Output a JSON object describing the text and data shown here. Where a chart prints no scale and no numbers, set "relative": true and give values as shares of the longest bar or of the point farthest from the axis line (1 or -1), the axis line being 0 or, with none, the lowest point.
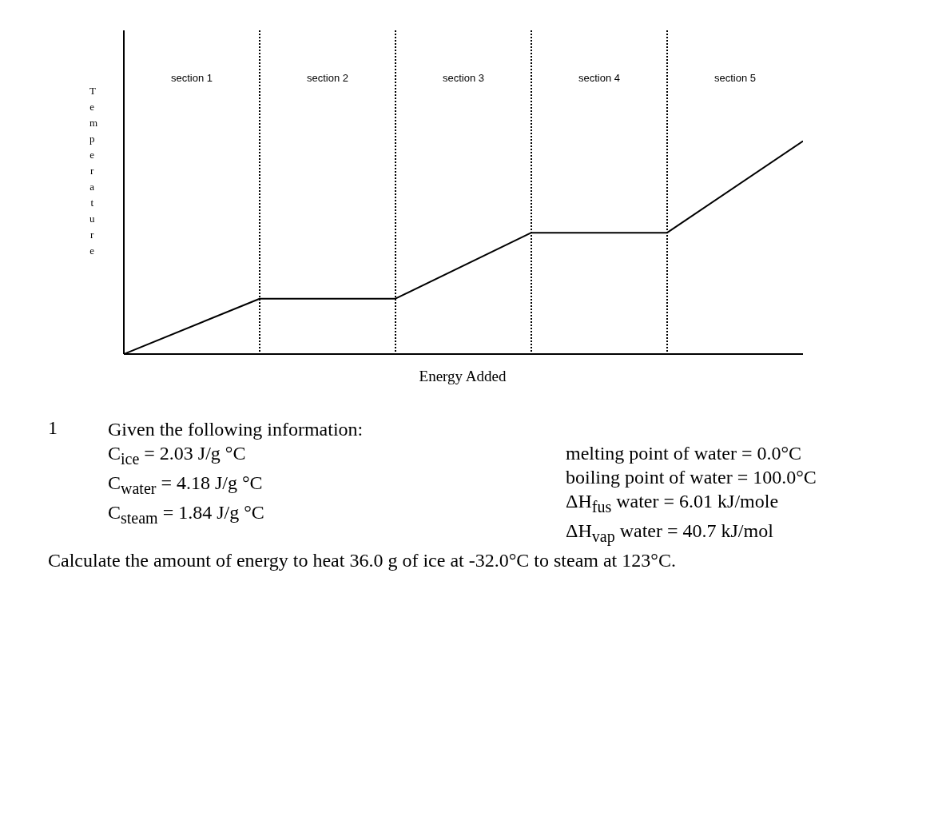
{
  "chart_data": {
    "type": "line",
    "relative": true,
    "xlabel": "Energy Added",
    "ylabel": "Temperature",
    "marker": "none",
    "line_style": "solid",
    "grid": "x",
    "categories": [
      null,
      null,
      null,
      null,
      null,
      null
    ],
    "series": [
      {
        "color": "#000000",
        "values": [
          0,
          0.26,
          0.26,
          0.57,
          0.57,
          1
        ]
      }
    ],
    "annotations": [
      "section 1",
      "section 2",
      "section 3",
      "section 4",
      "section 5",
      "1",
      "Given the following information:",
      "C$_{ice}$ = 2.03 J/g °C",
      "C$_{water}$ = 4.18 J/g °C",
      "C$_{steam}$ = 1.84 J/g °C",
      "melting point of water = 0.0°C",
      "boiling point of water = 100.0°C",
      "ΔH$_{fus}$ water = 6.01 kJ/mole",
      "ΔH$_{vap}$ water = 40.7 kJ/mol",
      "Calculate the amount of energy to heat 36.0 g of ice at -32.0°C to steam at 123°C."
    ]
  }
}
